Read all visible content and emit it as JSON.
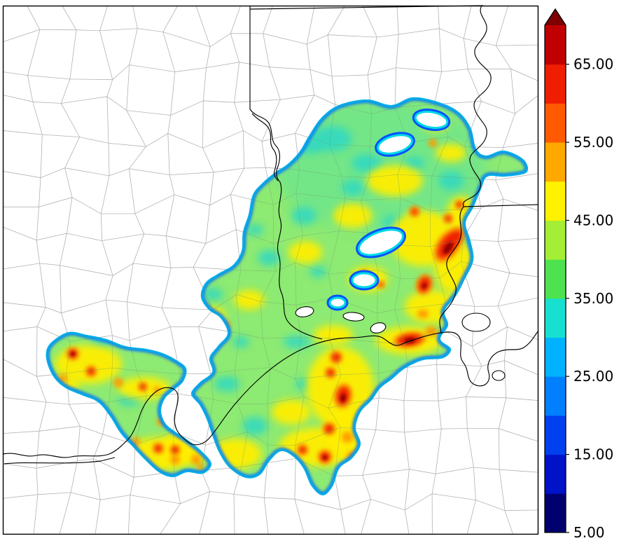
{
  "chart_data": {
    "type": "heatmap",
    "subtype": "filled-contour-map",
    "title": "",
    "colorbar": {
      "orientation": "vertical",
      "position": "right",
      "tick_labels": [
        "65.00",
        "55.00",
        "45.00",
        "35.00",
        "25.00",
        "15.00",
        "5.00"
      ],
      "tick_values": [
        65,
        55,
        45,
        35,
        25,
        15,
        5
      ],
      "min": 5,
      "max": 70,
      "segment_size": 5,
      "segment_colors": [
        "#00006e",
        "#0013c8",
        "#0040ee",
        "#007fff",
        "#00b2ff",
        "#18e0d0",
        "#4ee34e",
        "#a4ef35",
        "#fff200",
        "#ffa800",
        "#ff5a00",
        "#f01e00",
        "#c00000"
      ],
      "over_color": "#7f0000"
    },
    "field": {
      "base": "#8dea72",
      "wash_cyan": "#35dcc0",
      "cyan": "#2fd8c4",
      "yellow": "#ffee00",
      "orange": "#ff9d00",
      "red": "#ef2200",
      "dark_red": "#8f0000",
      "rim_outer": "#0353ff",
      "rim_inner": "#00d9e6"
    },
    "map": {
      "background": "#ffffff",
      "county_line": "#b3b3b3",
      "outline": "#000000"
    }
  }
}
